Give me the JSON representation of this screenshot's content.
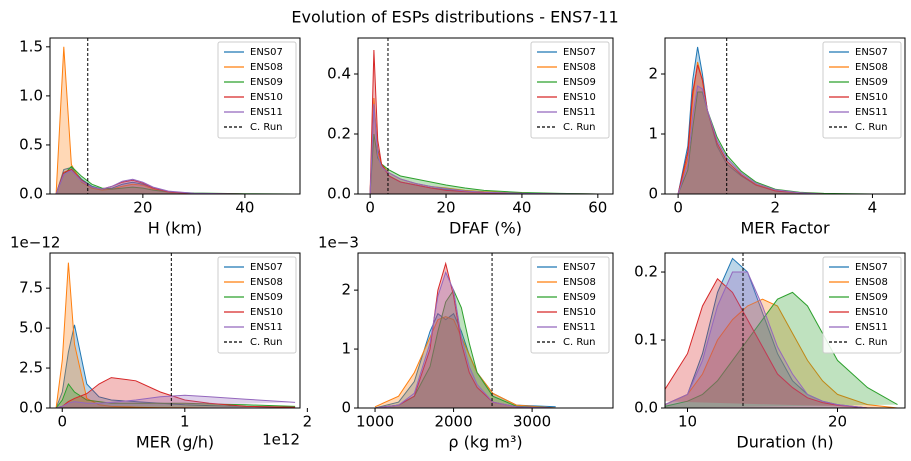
{
  "title": "Evolution of ESPs distributions - ENS7-11",
  "chart_data": [
    {
      "type": "area",
      "xlabel": "H (km)",
      "x": [
        3,
        4.5,
        6,
        8,
        10,
        12,
        14,
        16,
        18,
        20,
        22,
        25,
        30,
        40,
        50
      ],
      "series": [
        {
          "name": "ENS07",
          "color": "#1f77b4",
          "values": [
            0,
            0.25,
            0.27,
            0.15,
            0.08,
            0.05,
            0.06,
            0.1,
            0.12,
            0.1,
            0.06,
            0.02,
            0.005,
            0,
            0
          ]
        },
        {
          "name": "ENS08",
          "color": "#ff7f0e",
          "values": [
            0,
            1.5,
            0.3,
            0.12,
            0.06,
            0.04,
            0.05,
            0.08,
            0.1,
            0.09,
            0.05,
            0.02,
            0.005,
            0,
            0
          ]
        },
        {
          "name": "ENS09",
          "color": "#2ca02c",
          "values": [
            0,
            0.2,
            0.28,
            0.18,
            0.1,
            0.06,
            0.05,
            0.06,
            0.07,
            0.06,
            0.04,
            0.02,
            0.01,
            0.003,
            0
          ]
        },
        {
          "name": "ENS10",
          "color": "#d62728",
          "values": [
            0,
            0.22,
            0.25,
            0.14,
            0.07,
            0.05,
            0.08,
            0.12,
            0.14,
            0.11,
            0.06,
            0.02,
            0.005,
            0,
            0
          ]
        },
        {
          "name": "ENS11",
          "color": "#9467bd",
          "values": [
            0,
            0.2,
            0.24,
            0.13,
            0.07,
            0.05,
            0.08,
            0.13,
            0.15,
            0.12,
            0.07,
            0.03,
            0.008,
            0,
            0
          ]
        }
      ],
      "reference_line": {
        "name": "C. Run",
        "value": 9.2
      },
      "xlim": [
        1.8,
        50.8
      ],
      "xticks": [
        20,
        40
      ],
      "ylim": [
        0,
        1.59
      ],
      "yticks": [
        {
          "value": 0,
          "label": "0.0"
        },
        0.5,
        {
          "value": 1,
          "label": "1.0"
        },
        1.5
      ],
      "legend": "upper right"
    },
    {
      "type": "area",
      "xlabel": "DFAF (%)",
      "x": [
        0,
        1,
        2,
        3,
        5,
        8,
        12,
        16,
        20,
        25,
        30,
        40,
        50,
        60
      ],
      "series": [
        {
          "name": "ENS07",
          "color": "#1f77b4",
          "values": [
            0,
            0.3,
            0.15,
            0.1,
            0.06,
            0.04,
            0.03,
            0.02,
            0.015,
            0.01,
            0.006,
            0.002,
            0.001,
            0
          ]
        },
        {
          "name": "ENS08",
          "color": "#ff7f0e",
          "values": [
            0,
            0.32,
            0.14,
            0.1,
            0.07,
            0.05,
            0.035,
            0.025,
            0.02,
            0.012,
            0.008,
            0.003,
            0.001,
            0
          ]
        },
        {
          "name": "ENS09",
          "color": "#2ca02c",
          "values": [
            0,
            0.2,
            0.12,
            0.1,
            0.08,
            0.06,
            0.05,
            0.04,
            0.03,
            0.02,
            0.012,
            0.005,
            0.002,
            0
          ]
        },
        {
          "name": "ENS10",
          "color": "#d62728",
          "values": [
            0,
            0.48,
            0.18,
            0.1,
            0.06,
            0.04,
            0.03,
            0.02,
            0.012,
            0.008,
            0.004,
            0.002,
            0,
            0
          ]
        },
        {
          "name": "ENS11",
          "color": "#9467bd",
          "values": [
            0,
            0.3,
            0.13,
            0.09,
            0.07,
            0.05,
            0.035,
            0.025,
            0.018,
            0.01,
            0.006,
            0.002,
            0.001,
            0
          ]
        }
      ],
      "reference_line": {
        "name": "C. Run",
        "value": 4.7
      },
      "xlim": [
        -3.2,
        64
      ],
      "xticks": [
        0,
        20,
        40,
        60
      ],
      "ylim": [
        0,
        0.52
      ],
      "yticks": [
        {
          "value": 0,
          "label": "0.0"
        },
        0.2,
        0.4
      ],
      "legend": "upper right"
    },
    {
      "type": "area",
      "xlabel": "MER Factor",
      "x": [
        0,
        0.2,
        0.3,
        0.4,
        0.5,
        0.6,
        0.8,
        1.0,
        1.3,
        1.6,
        2,
        2.5,
        3,
        4
      ],
      "series": [
        {
          "name": "ENS07",
          "color": "#1f77b4",
          "values": [
            0,
            0.8,
            1.9,
            2.45,
            2.0,
            1.4,
            0.8,
            0.5,
            0.3,
            0.15,
            0.05,
            0.02,
            0,
            0
          ]
        },
        {
          "name": "ENS08",
          "color": "#ff7f0e",
          "values": [
            0,
            0.6,
            1.6,
            2.2,
            1.9,
            1.4,
            0.85,
            0.55,
            0.32,
            0.16,
            0.06,
            0.02,
            0,
            0
          ]
        },
        {
          "name": "ENS09",
          "color": "#2ca02c",
          "values": [
            0,
            0.4,
            1.1,
            1.7,
            1.7,
            1.4,
            0.95,
            0.65,
            0.38,
            0.2,
            0.08,
            0.03,
            0.01,
            0
          ]
        },
        {
          "name": "ENS10",
          "color": "#d62728",
          "values": [
            0,
            0.7,
            1.7,
            2.15,
            1.9,
            1.4,
            0.85,
            0.55,
            0.32,
            0.15,
            0.05,
            0.02,
            0,
            0
          ]
        },
        {
          "name": "ENS11",
          "color": "#9467bd",
          "values": [
            0,
            0.5,
            1.3,
            1.8,
            1.75,
            1.4,
            0.9,
            0.6,
            0.35,
            0.18,
            0.07,
            0.02,
            0,
            0
          ]
        }
      ],
      "reference_line": {
        "name": "C. Run",
        "value": 1.0
      },
      "xlim": [
        -0.27,
        4.67
      ],
      "xticks": [
        0,
        2,
        4
      ],
      "ylim": [
        0,
        2.6
      ],
      "yticks": [
        0,
        1,
        2
      ],
      "legend": "upper right"
    },
    {
      "type": "area",
      "xlabel": "MER (g/h)",
      "x_offset": "1e12",
      "y_offset": "1e−12",
      "x": [
        -0.05,
        0,
        0.05,
        0.1,
        0.2,
        0.3,
        0.4,
        0.6,
        0.8,
        1.0,
        1.2,
        1.5,
        1.9
      ],
      "series": [
        {
          "name": "ENS07",
          "color": "#1f77b4",
          "values": [
            0,
            1,
            3.5,
            5.2,
            1.5,
            0.7,
            0.5,
            0.4,
            0.3,
            0.2,
            0.15,
            0.1,
            0.05
          ]
        },
        {
          "name": "ENS08",
          "color": "#ff7f0e",
          "values": [
            0,
            3,
            9.1,
            4,
            0.6,
            0.2,
            0.1,
            0.05,
            0.02,
            0.01,
            0,
            0,
            0
          ]
        },
        {
          "name": "ENS09",
          "color": "#2ca02c",
          "values": [
            0,
            0.5,
            1.5,
            1.0,
            0.5,
            0.4,
            0.3,
            0.3,
            0.3,
            0.3,
            0.25,
            0.2,
            0.1
          ]
        },
        {
          "name": "ENS10",
          "color": "#d62728",
          "values": [
            0,
            0.1,
            0.4,
            0.6,
            0.9,
            1.5,
            1.9,
            1.7,
            1.0,
            0.5,
            0.3,
            0.1,
            0.05
          ]
        },
        {
          "name": "ENS11",
          "color": "#9467bd",
          "values": [
            0,
            0.1,
            0.3,
            0.4,
            0.3,
            0.3,
            0.35,
            0.5,
            0.7,
            0.8,
            0.7,
            0.55,
            0.35
          ]
        }
      ],
      "reference_line": {
        "name": "C. Run",
        "value": 0.89
      },
      "xlim": [
        -0.1,
        1.94
      ],
      "xticks": [
        0,
        1,
        2
      ],
      "ylim": [
        0,
        9.7
      ],
      "yticks": [
        {
          "value": 0,
          "label": "0.0"
        },
        2.5,
        {
          "value": 5,
          "label": "5.0"
        },
        7.5
      ],
      "legend": "upper right"
    },
    {
      "type": "area",
      "xlabel": "ρ (kg m³)",
      "y_offset": "1e−3",
      "x": [
        1000,
        1300,
        1500,
        1700,
        1800,
        1900,
        2000,
        2100,
        2200,
        2300,
        2500,
        2800,
        3300
      ],
      "series": [
        {
          "name": "ENS07",
          "color": "#1f77b4",
          "values": [
            0,
            0.1,
            0.45,
            1.3,
            1.6,
            1.5,
            1.6,
            1.3,
            0.9,
            0.6,
            0.25,
            0.05,
            0.02
          ]
        },
        {
          "name": "ENS08",
          "color": "#ff7f0e",
          "values": [
            0.02,
            0.2,
            0.6,
            1.2,
            1.5,
            1.55,
            1.5,
            1.2,
            0.9,
            0.6,
            0.25,
            0.05,
            0
          ]
        },
        {
          "name": "ENS09",
          "color": "#2ca02c",
          "values": [
            0,
            0.05,
            0.2,
            0.7,
            1.3,
            1.8,
            2.0,
            1.7,
            1.1,
            0.6,
            0.2,
            0.03,
            0
          ]
        },
        {
          "name": "ENS10",
          "color": "#d62728",
          "values": [
            0,
            0.05,
            0.2,
            1.0,
            2.0,
            2.45,
            1.9,
            1.1,
            0.6,
            0.35,
            0.1,
            0.02,
            0
          ]
        },
        {
          "name": "ENS11",
          "color": "#9467bd",
          "values": [
            0,
            0.05,
            0.25,
            1.1,
            1.9,
            2.3,
            2.0,
            1.2,
            0.7,
            0.4,
            0.1,
            0.02,
            0
          ]
        }
      ],
      "reference_line": {
        "name": "C. Run",
        "value": 2490
      },
      "xlim": [
        783,
        4030
      ],
      "xticks": [
        1000,
        2000,
        3000
      ],
      "ylim": [
        0,
        2.63
      ],
      "yticks": [
        0,
        1,
        2
      ],
      "legend": "upper right"
    },
    {
      "type": "area",
      "xlabel": "Duration (h)",
      "x": [
        8,
        10,
        11,
        12,
        13,
        14,
        15,
        16,
        17,
        18,
        19,
        20,
        22,
        24
      ],
      "series": [
        {
          "name": "ENS07",
          "color": "#1f77b4",
          "values": [
            0,
            0.02,
            0.08,
            0.17,
            0.22,
            0.2,
            0.14,
            0.08,
            0.04,
            0.02,
            0.01,
            0.005,
            0,
            0
          ]
        },
        {
          "name": "ENS08",
          "color": "#ff7f0e",
          "values": [
            0,
            0.02,
            0.05,
            0.1,
            0.13,
            0.15,
            0.16,
            0.15,
            0.11,
            0.07,
            0.04,
            0.02,
            0.005,
            0
          ]
        },
        {
          "name": "ENS09",
          "color": "#2ca02c",
          "values": [
            0,
            0.01,
            0.02,
            0.04,
            0.07,
            0.1,
            0.13,
            0.16,
            0.17,
            0.15,
            0.11,
            0.07,
            0.03,
            0.005
          ]
        },
        {
          "name": "ENS10",
          "color": "#d62728",
          "values": [
            0.01,
            0.08,
            0.15,
            0.19,
            0.17,
            0.13,
            0.09,
            0.05,
            0.03,
            0.015,
            0.008,
            0.004,
            0,
            0
          ]
        },
        {
          "name": "ENS11",
          "color": "#9467bd",
          "values": [
            0,
            0.02,
            0.07,
            0.15,
            0.2,
            0.2,
            0.15,
            0.09,
            0.05,
            0.02,
            0.01,
            0.005,
            0,
            0
          ]
        }
      ],
      "reference_line": {
        "name": "C. Run",
        "value": 13.7
      },
      "xlim": [
        8.5,
        24.5
      ],
      "xticks": [
        10,
        20
      ],
      "ylim": [
        0,
        0.228
      ],
      "yticks": [
        {
          "value": 0,
          "label": "0.0"
        },
        0.1,
        0.2
      ],
      "legend": "upper right"
    }
  ]
}
